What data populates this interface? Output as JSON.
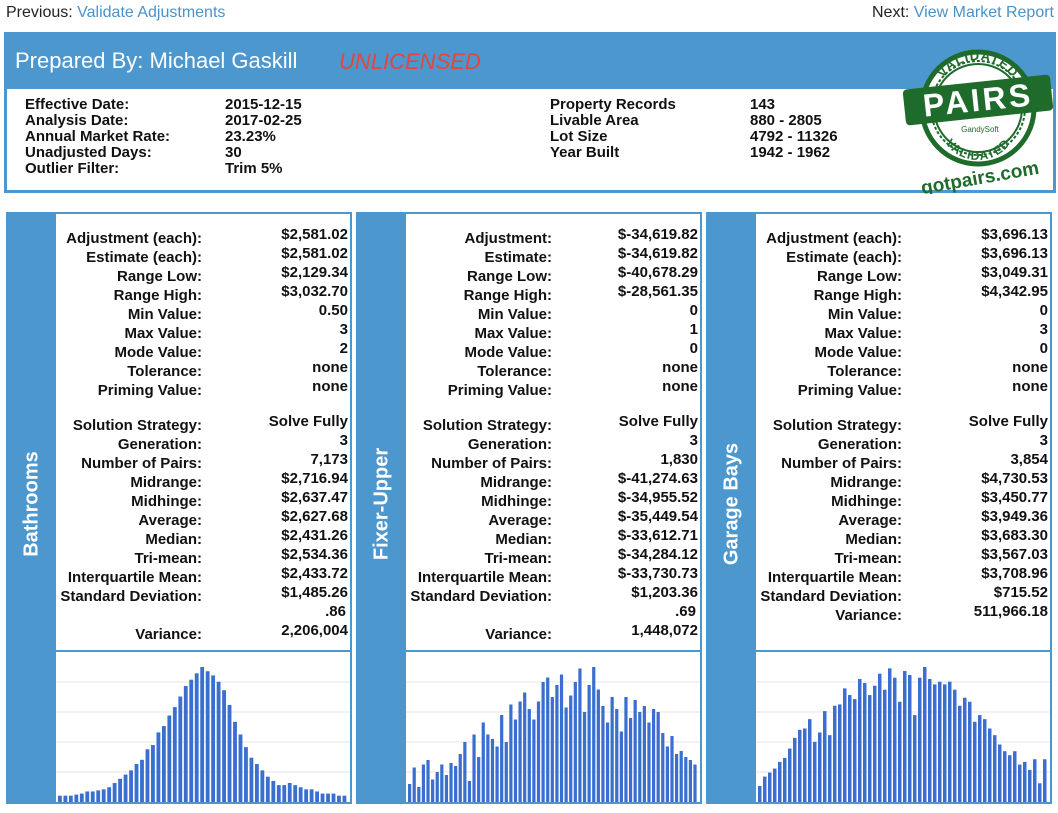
{
  "nav": {
    "prev_label": "Previous:",
    "prev_link": "Validate Adjustments",
    "next_label": "Next:",
    "next_link": "View Market Report"
  },
  "header": {
    "prepared_by": "Prepared By: Michael Gaskill",
    "license_status": "UNLICENSED"
  },
  "info": {
    "left": [
      {
        "label": "Effective Date:",
        "value": "2015-12-15"
      },
      {
        "label": "Analysis Date:",
        "value": "2017-02-25"
      },
      {
        "label": "Annual Market Rate:",
        "value": "23.23%"
      },
      {
        "label": "Unadjusted Days:",
        "value": "30"
      },
      {
        "label": "Outlier Filter:",
        "value": "Trim 5%"
      }
    ],
    "right": [
      {
        "label": "Property Records",
        "value": "143"
      },
      {
        "label": "Livable Area",
        "value": "880 - 2805"
      },
      {
        "label": "Lot Size",
        "value": "4792 - 11326"
      },
      {
        "label": "Year Built",
        "value": "1942 - 1962"
      }
    ]
  },
  "seal": {
    "top_text": "VALIDATED",
    "main_text": "PAIRS",
    "maker": "GandySoft",
    "bottom_text": "VALIDATED",
    "site": "gotpairs.com"
  },
  "panels": [
    {
      "title": "Bathrooms",
      "stats_top": [
        {
          "label": "Adjustment (each):",
          "value": "$2,581.02"
        },
        {
          "label": "Estimate (each):",
          "value": "$2,581.02"
        },
        {
          "label": "Range Low:",
          "value": "$2,129.34"
        },
        {
          "label": "Range High:",
          "value": "$3,032.70"
        },
        {
          "label": "Min Value:",
          "value": "0.50"
        },
        {
          "label": "Max Value:",
          "value": "3"
        },
        {
          "label": "Mode Value:",
          "value": "2"
        },
        {
          "label": "Tolerance:",
          "value": "none"
        },
        {
          "label": "Priming Value:",
          "value": "none"
        }
      ],
      "stats_bottom": [
        {
          "label": "Solution Strategy:",
          "value": "Solve Fully"
        },
        {
          "label": "Generation:",
          "value": "3"
        },
        {
          "label": "Number of Pairs:",
          "value": "7,173"
        },
        {
          "label": "Midrange:",
          "value": "$2,716.94"
        },
        {
          "label": "Midhinge:",
          "value": "$2,637.47"
        },
        {
          "label": "Average:",
          "value": "$2,627.68"
        },
        {
          "label": "Median:",
          "value": "$2,431.26"
        },
        {
          "label": "Tri-mean:",
          "value": "$2,534.36"
        },
        {
          "label": "Interquartile Mean:",
          "value": "$2,433.72"
        },
        {
          "label": "Standard Deviation:",
          "value": "$1,485.26"
        }
      ],
      "std_wrap": ".86",
      "variance_label": "Variance:",
      "variance_value": "2,206,004",
      "histogram": [
        3,
        3,
        3,
        3.5,
        4,
        5,
        5,
        5.5,
        6,
        7,
        9,
        11,
        13,
        15,
        18,
        20,
        25,
        27,
        33,
        36,
        41,
        45,
        50,
        55,
        58,
        61,
        64,
        62,
        60,
        57,
        53,
        46,
        38,
        32,
        26,
        21,
        18,
        15,
        12,
        10,
        8,
        8,
        9,
        8,
        7,
        6,
        6,
        5,
        4,
        4,
        4,
        3,
        3
      ]
    },
    {
      "title": "Fixer-Upper",
      "stats_top": [
        {
          "label": "Adjustment:",
          "value": "$-34,619.82"
        },
        {
          "label": "Estimate:",
          "value": "$-34,619.82"
        },
        {
          "label": "Range Low:",
          "value": "$-40,678.29"
        },
        {
          "label": "Range High:",
          "value": "$-28,561.35"
        },
        {
          "label": "Min Value:",
          "value": "0"
        },
        {
          "label": "Max Value:",
          "value": "1"
        },
        {
          "label": "Mode Value:",
          "value": "0"
        },
        {
          "label": "Tolerance:",
          "value": "none"
        },
        {
          "label": "Priming Value:",
          "value": "none"
        }
      ],
      "stats_bottom": [
        {
          "label": "Solution Strategy:",
          "value": "Solve Fully"
        },
        {
          "label": "Generation:",
          "value": "3"
        },
        {
          "label": "Number of Pairs:",
          "value": "1,830"
        },
        {
          "label": "Midrange:",
          "value": "$-41,274.63"
        },
        {
          "label": "Midhinge:",
          "value": "$-34,955.52"
        },
        {
          "label": "Average:",
          "value": "$-35,449.54"
        },
        {
          "label": "Median:",
          "value": "$-33,612.71"
        },
        {
          "label": "Tri-mean:",
          "value": "$-34,284.12"
        },
        {
          "label": "Interquartile Mean:",
          "value": "$-33,730.73"
        },
        {
          "label": "Standard Deviation:",
          "value": "$1,203.36"
        }
      ],
      "std_wrap": ".69",
      "variance_label": "Variance:",
      "variance_value": "1,448,072",
      "histogram": [
        12,
        23,
        10,
        25,
        28,
        15,
        20,
        25,
        18,
        26,
        24,
        32,
        40,
        14,
        45,
        30,
        53,
        45,
        42,
        37,
        58,
        40,
        65,
        55,
        67,
        73,
        62,
        55,
        67,
        80,
        83,
        70,
        78,
        85,
        63,
        71,
        80,
        89,
        60,
        78,
        90,
        75,
        64,
        53,
        70,
        62,
        47,
        70,
        56,
        68,
        60,
        64,
        53,
        62,
        60,
        46,
        37,
        44,
        32,
        34,
        30,
        28,
        25
      ]
    },
    {
      "title": "Garage Bays",
      "stats_top": [
        {
          "label": "Adjustment (each):",
          "value": "$3,696.13"
        },
        {
          "label": "Estimate (each):",
          "value": "$3,696.13"
        },
        {
          "label": "Range Low:",
          "value": "$3,049.31"
        },
        {
          "label": "Range High:",
          "value": "$4,342.95"
        },
        {
          "label": "Min Value:",
          "value": "0"
        },
        {
          "label": "Max Value:",
          "value": "3"
        },
        {
          "label": "Mode Value:",
          "value": "0"
        },
        {
          "label": "Tolerance:",
          "value": "none"
        },
        {
          "label": "Priming Value:",
          "value": "none"
        }
      ],
      "stats_bottom": [
        {
          "label": "Solution Strategy:",
          "value": "Solve Fully"
        },
        {
          "label": "Generation:",
          "value": "3"
        },
        {
          "label": "Number of Pairs:",
          "value": "3,854"
        },
        {
          "label": "Midrange:",
          "value": "$4,730.53"
        },
        {
          "label": "Midhinge:",
          "value": "$3,450.77"
        },
        {
          "label": "Average:",
          "value": "$3,949.36"
        },
        {
          "label": "Median:",
          "value": "$3,683.30"
        },
        {
          "label": "Tri-mean:",
          "value": "$3,567.03"
        },
        {
          "label": "Interquartile Mean:",
          "value": "$3,708.96"
        },
        {
          "label": "Standard Deviation:",
          "value": "$715.52"
        }
      ],
      "std_wrap": "",
      "variance_label": "Variance:",
      "variance_value": "511,966.18",
      "histogram": [
        12,
        19,
        22,
        25,
        30,
        33,
        40,
        48,
        54,
        55,
        62,
        45,
        52,
        68,
        50,
        72,
        73,
        85,
        80,
        77,
        92,
        89,
        80,
        87,
        96,
        84,
        100,
        93,
        75,
        98,
        95,
        65,
        93,
        101,
        92,
        88,
        90,
        88,
        90,
        84,
        72,
        78,
        75,
        60,
        65,
        62,
        55,
        50,
        43,
        38,
        35,
        38,
        28,
        30,
        24,
        32,
        14,
        32
      ]
    }
  ]
}
